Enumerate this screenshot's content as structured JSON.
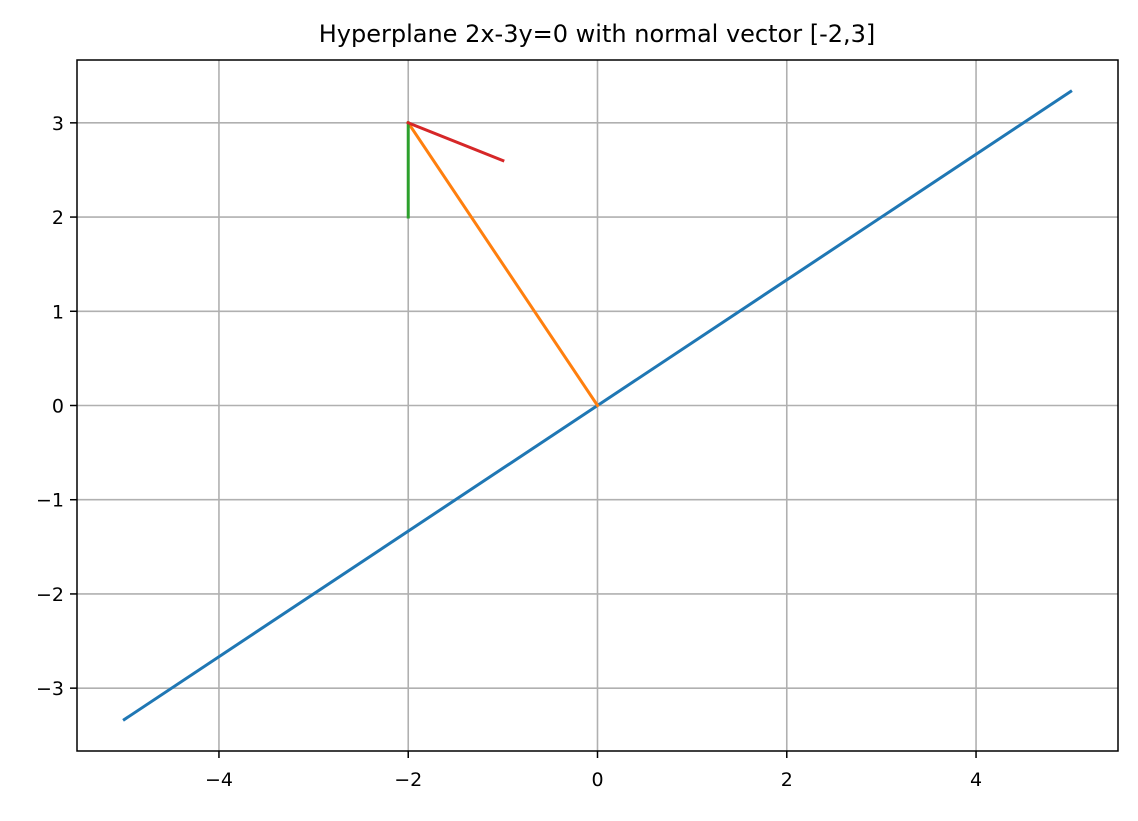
{
  "chart_data": {
    "type": "line",
    "title": "Hyperplane 2x-3y=0 with normal vector [-2,3]",
    "xlabel": "",
    "ylabel": "",
    "xlim": [
      -5.5,
      5.5
    ],
    "ylim": [
      -3.667,
      3.667
    ],
    "xticks": [
      -4,
      -2,
      0,
      2,
      4
    ],
    "yticks": [
      -3,
      -2,
      -1,
      0,
      1,
      2,
      3
    ],
    "grid": true,
    "legend": "none",
    "series": [
      {
        "color": "#1f77b4",
        "x": [
          -5,
          5
        ],
        "y": [
          -3.333,
          3.333
        ]
      },
      {
        "color": "#ff7f0e",
        "x": [
          0,
          -2
        ],
        "y": [
          0,
          3
        ]
      },
      {
        "color": "#2ca02c",
        "x": [
          -2,
          -2
        ],
        "y": [
          2,
          3
        ]
      },
      {
        "color": "#d62728",
        "x": [
          -2,
          -1
        ],
        "y": [
          3,
          2.6
        ]
      }
    ]
  }
}
